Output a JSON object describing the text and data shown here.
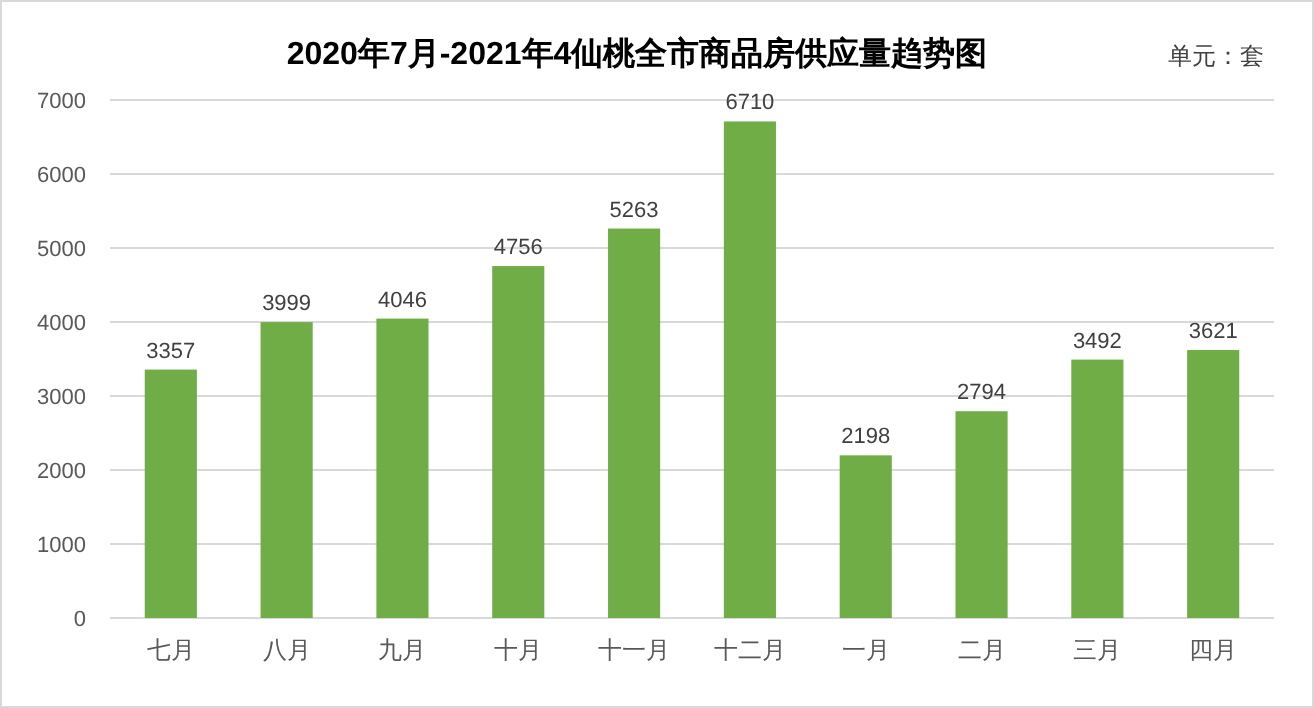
{
  "chart_data": {
    "type": "bar",
    "title": "2020年7月-2021年4仙桃全市商品房供应量趋势图",
    "annotations": [
      "单元：套"
    ],
    "categories": [
      "七月",
      "八月",
      "九月",
      "十月",
      "十一月",
      "十二月",
      "一月",
      "二月",
      "三月",
      "四月"
    ],
    "values": [
      3357,
      3999,
      4046,
      4756,
      5263,
      6710,
      2198,
      2794,
      3492,
      3621
    ],
    "color": "#70ad47",
    "ylim": [
      0,
      7000
    ],
    "yticks": [
      0,
      1000,
      2000,
      3000,
      4000,
      5000,
      6000,
      7000
    ],
    "grid": "y",
    "data_labels": true
  }
}
